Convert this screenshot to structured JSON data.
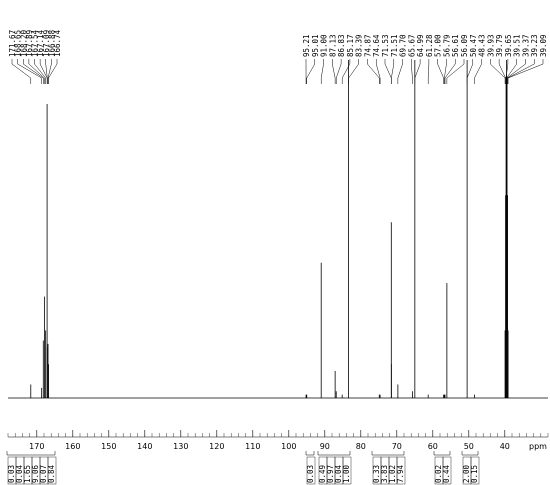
{
  "chart_data": {
    "type": "spectrum",
    "x_label": "ppm",
    "x": [
      171.67,
      168.65,
      168.2,
      167.89,
      167.54,
      167.14,
      167.09,
      166.88,
      166.74,
      95.21,
      95.01,
      91.0,
      87.13,
      86.83,
      85.17,
      83.39,
      74.87,
      74.64,
      71.53,
      71.51,
      69.7,
      65.67,
      64.99,
      61.28,
      57.0,
      56.79,
      56.61,
      56.09,
      50.47,
      48.43,
      39.93,
      39.79,
      39.65,
      39.51,
      39.37,
      39.23,
      39.09
    ],
    "peak_labels": [
      "171.67",
      "168.65",
      "168.20",
      "167.89",
      "167.54",
      "167.14",
      "167.09",
      "166.88",
      "166.74",
      "95.21",
      "95.01",
      "91.00",
      "87.13",
      "86.83",
      "85.17",
      "83.39",
      "74.87",
      "74.64",
      "71.53",
      "71.51",
      "69.70",
      "65.67",
      "64.99",
      "61.28",
      "57.00",
      "56.79",
      "56.61",
      "56.09",
      "50.47",
      "48.43",
      "39.93",
      "39.79",
      "39.65",
      "39.51",
      "39.37",
      "39.23",
      "39.09"
    ],
    "values": [
      4,
      3,
      17,
      30,
      20,
      87,
      15,
      16,
      10,
      1,
      1,
      40,
      8,
      2,
      1,
      100,
      1,
      1,
      52,
      10,
      4,
      2,
      100,
      1,
      1,
      1,
      1,
      34,
      100,
      1,
      20,
      60,
      95,
      100,
      95,
      60,
      20
    ],
    "integrals": [
      [
        "0.03",
        "0.04",
        "1.65",
        "9.06",
        "0.07",
        "0.84"
      ],
      [
        "0.03"
      ],
      [
        "0.49",
        "0.97",
        "0.04",
        "1.00"
      ],
      [
        "0.33",
        "3.83",
        "1.02",
        "7.94"
      ],
      [
        "0.02",
        "0.44"
      ],
      [
        "2.00",
        "0.15"
      ]
    ],
    "xlim": [
      178,
      28
    ],
    "ylim": [
      0,
      100
    ],
    "xticks": [
      170,
      160,
      150,
      140,
      130,
      120,
      110,
      100,
      90,
      80,
      70,
      60,
      50,
      40
    ],
    "color": "#000000"
  }
}
